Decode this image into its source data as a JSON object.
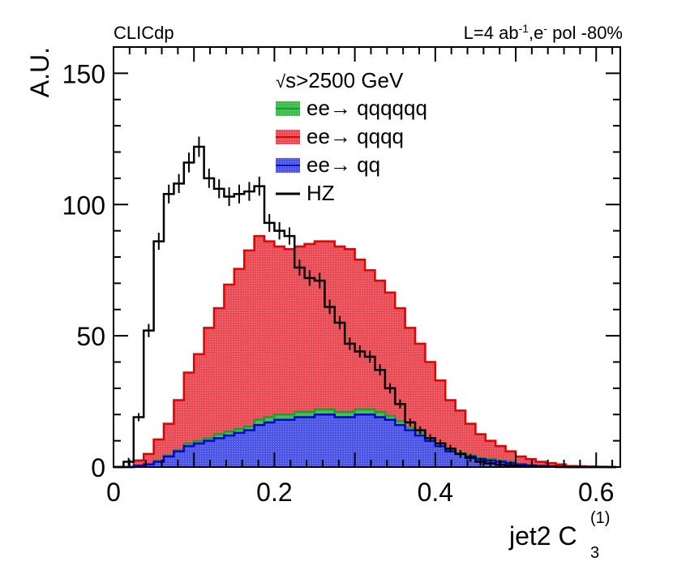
{
  "header": {
    "left": "CLICdp",
    "right_pre": "L=4 ab",
    "right_sup1": "-1",
    "right_mid": ",e",
    "right_sup2": "-",
    "right_post": " pol -80%"
  },
  "legend_title": {
    "sqrt": "√",
    "rest": "s>2500 GeV"
  },
  "chart_data": {
    "type": "histogram",
    "xlabel": "jet2 C",
    "xlabel_sub": "3",
    "xlabel_sup": "(1)",
    "ylabel": "A.U.",
    "xlim": [
      0,
      0.63
    ],
    "ylim": [
      0,
      160
    ],
    "xticks": [
      {
        "value": 0,
        "label": "0"
      },
      {
        "value": 0.2,
        "label": "0.2"
      },
      {
        "value": 0.4,
        "label": "0.4"
      },
      {
        "value": 0.6,
        "label": "0.6"
      }
    ],
    "yticks": [
      {
        "value": 0,
        "label": "0"
      },
      {
        "value": 50,
        "label": "50"
      },
      {
        "value": 100,
        "label": "100"
      },
      {
        "value": 150,
        "label": "150"
      }
    ],
    "bin_width": 0.0125,
    "bin_start": 0.0,
    "stack_bottom_first": [
      {
        "name": "ee→ qq",
        "label_pre": "ee",
        "label_arrow": "→",
        "label_post": " qq",
        "fill": "#4b55e6",
        "line": "#0000dd",
        "values": [
          0,
          0,
          0.5,
          1,
          2,
          4,
          6,
          8,
          9,
          10,
          11,
          12,
          13,
          14,
          16,
          17,
          18,
          18,
          19,
          19,
          20,
          20,
          19,
          19,
          20,
          20,
          19,
          18,
          16,
          14,
          12,
          10,
          8,
          6,
          5,
          4,
          3,
          2.5,
          2,
          1.5,
          1,
          0.6,
          0.4,
          0.2,
          0.1,
          0,
          0,
          0,
          0,
          0
        ]
      },
      {
        "name": "ee→ qqqqqq",
        "label_pre": "ee",
        "label_arrow": "→",
        "label_post": " qqqqqq",
        "fill": "#3cbd4a",
        "line": "#1e9e32",
        "values": [
          0,
          0,
          0,
          0,
          0.5,
          0.5,
          0.5,
          1,
          1,
          1,
          1.5,
          1.5,
          1.5,
          1.5,
          2,
          2,
          2,
          2,
          2,
          2,
          2,
          2,
          2,
          2,
          2,
          2,
          2,
          1.5,
          1.5,
          1,
          1,
          1,
          1,
          0.5,
          0.5,
          0.5,
          0.5,
          0.5,
          0.5,
          0.5,
          0,
          0,
          0,
          0,
          0,
          0,
          0,
          0,
          0,
          0
        ]
      },
      {
        "name": "ee→ qqqq",
        "label_pre": "ee",
        "label_arrow": "→",
        "label_post": " qqqq",
        "fill": "#ea4c55",
        "line": "#e00000",
        "values": [
          0,
          0,
          2,
          4,
          8,
          12,
          19,
          27,
          33,
          42,
          48,
          56,
          61,
          67,
          70,
          67,
          64,
          63,
          63,
          64,
          64,
          64,
          63,
          62,
          57,
          53,
          50,
          47,
          43,
          38,
          34,
          29,
          24,
          19,
          16,
          12,
          9,
          7,
          5.5,
          4,
          3,
          2.4,
          1.6,
          1.3,
          0.9,
          0.4,
          0.3,
          0.2,
          0.1,
          0
        ]
      }
    ],
    "overlay": {
      "name": "HZ",
      "label": "HZ",
      "line": "#000000",
      "values": [
        0,
        2,
        19,
        52,
        86,
        104,
        108,
        116,
        122,
        110,
        106,
        103,
        104,
        105,
        107,
        93,
        90,
        88,
        76,
        72,
        71,
        61,
        55,
        47,
        44,
        42,
        37,
        30,
        24,
        17,
        14,
        11,
        9,
        7,
        5,
        3.5,
        2,
        1.4,
        0.9,
        0.6,
        0.4,
        0.3,
        0.2,
        0.1,
        0,
        0,
        0,
        0,
        0,
        0
      ]
    }
  }
}
